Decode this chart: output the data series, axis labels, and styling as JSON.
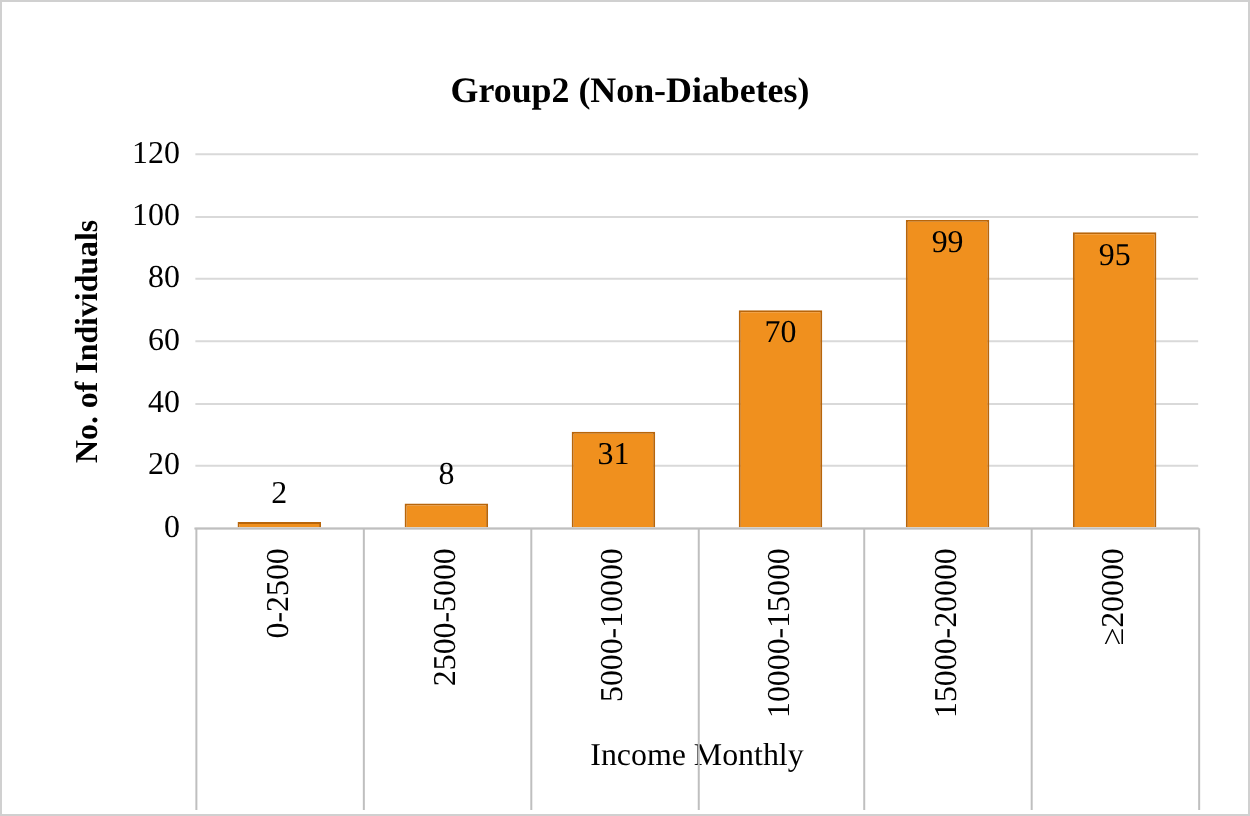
{
  "chart_data": {
    "type": "bar",
    "title": "Group2 (Non-Diabetes)",
    "xlabel": "Income Monthly",
    "ylabel": "No. of Individuals",
    "categories": [
      "0-2500",
      "2500-5000",
      "5000-10000",
      "10000-15000",
      "15000-20000",
      "≥20000"
    ],
    "values": [
      2,
      8,
      31,
      70,
      99,
      95
    ],
    "color": "#f0901e",
    "ylim": [
      0,
      120
    ],
    "yticks": [
      0,
      20,
      40,
      60,
      80,
      100,
      120
    ],
    "grid": "y",
    "legend": false,
    "data_labels": true
  }
}
